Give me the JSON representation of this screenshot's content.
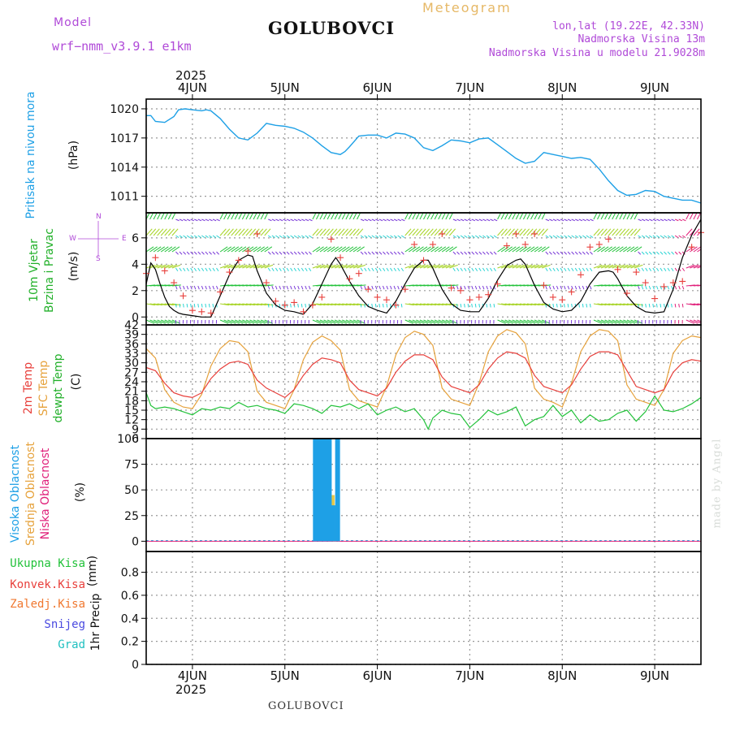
{
  "header": {
    "model_label": "Model",
    "model_name": "wrf−nmm_v3.9.1  e1km",
    "title": "GOLUBOVCI",
    "subtitle": "Meteogram",
    "lonlat": "lon,lat (19.22E, 42.33N)",
    "elevation": "Nadmorska Visina 13m",
    "model_elevation": "Nadmorska Visina u modelu 21.9028m",
    "footer_title": "GOLUBOVCI",
    "watermark": "made by Angel"
  },
  "colors": {
    "pressure": "#1ea0e6",
    "wind_speed": "#000000",
    "gust": "#e8403c",
    "temp2m": "#e8403c",
    "sfc_temp": "#e6a23c",
    "dewpoint": "#22c23a",
    "cloud_high": "#1ea0e6",
    "cloud_mid": "#e6c84a",
    "cloud_low": "#e0207a",
    "grid": "#888888"
  },
  "chart_data": [
    {
      "type": "line",
      "panel": "pressure",
      "ylabel": "Pritisak na nivou mora",
      "unit": "(hPa)",
      "yticks": [
        1011,
        1014,
        1017,
        1020
      ],
      "ylim": [
        1009.3,
        1021.0
      ],
      "x_days": [
        "4JUN",
        "5JUN",
        "6JUN",
        "7JUN",
        "8JUN",
        "9JUN"
      ],
      "year": "2025",
      "xlim": [
        3.5,
        9.5
      ],
      "series": [
        {
          "x": [
            3.5,
            3.55,
            3.6,
            3.7,
            3.8,
            3.85,
            3.92,
            4.0,
            4.1,
            4.15,
            4.2,
            4.3,
            4.4,
            4.5,
            4.6,
            4.7,
            4.8,
            4.9,
            5.0,
            5.1,
            5.2,
            5.3,
            5.4,
            5.5,
            5.6,
            5.65,
            5.7,
            5.8,
            5.9,
            6.0,
            6.1,
            6.2,
            6.3,
            6.4,
            6.5,
            6.6,
            6.7,
            6.8,
            6.9,
            7.0,
            7.1,
            7.2,
            7.3,
            7.4,
            7.5,
            7.6,
            7.7,
            7.8,
            7.9,
            8.0,
            8.1,
            8.2,
            8.3,
            8.4,
            8.5,
            8.6,
            8.7,
            8.8,
            8.9,
            9.0,
            9.1,
            9.2,
            9.3,
            9.4,
            9.5
          ],
          "values": [
            1019.3,
            1019.3,
            1018.7,
            1018.6,
            1019.2,
            1019.9,
            1020.0,
            1019.9,
            1019.8,
            1019.9,
            1019.8,
            1019.0,
            1017.9,
            1017.0,
            1016.8,
            1017.5,
            1018.5,
            1018.3,
            1018.2,
            1018.0,
            1017.6,
            1017.0,
            1016.2,
            1015.5,
            1015.3,
            1015.6,
            1016.1,
            1017.2,
            1017.3,
            1017.3,
            1017.0,
            1017.5,
            1017.4,
            1017.0,
            1016.0,
            1015.7,
            1016.2,
            1016.8,
            1016.7,
            1016.5,
            1016.9,
            1017.0,
            1016.3,
            1015.6,
            1014.9,
            1014.4,
            1014.6,
            1015.5,
            1015.3,
            1015.1,
            1014.9,
            1015.0,
            1014.8,
            1013.8,
            1012.6,
            1011.6,
            1011.1,
            1011.2,
            1011.6,
            1011.5,
            1011.0,
            1010.8,
            1010.6,
            1010.6,
            1010.3
          ]
        }
      ]
    },
    {
      "type": "line",
      "panel": "wind",
      "ylabel_line1": "10m  Vjetar",
      "ylabel_line2": "Brzina i Pravac",
      "unit": "(m/s)",
      "compass": [
        "N",
        "E",
        "S",
        "W"
      ],
      "yticks": [
        0,
        2,
        4,
        6
      ],
      "ylim": [
        -0.6,
        7.9
      ],
      "xlim": [
        3.5,
        9.5
      ],
      "series": [
        {
          "name_role": "speed",
          "x": [
            3.5,
            3.55,
            3.6,
            3.65,
            3.7,
            3.75,
            3.8,
            3.85,
            3.9,
            4.0,
            4.1,
            4.2,
            4.3,
            4.4,
            4.5,
            4.6,
            4.65,
            4.7,
            4.8,
            4.9,
            5.0,
            5.1,
            5.2,
            5.3,
            5.4,
            5.5,
            5.55,
            5.6,
            5.7,
            5.8,
            5.9,
            6.0,
            6.1,
            6.2,
            6.3,
            6.4,
            6.5,
            6.55,
            6.6,
            6.7,
            6.8,
            6.9,
            7.0,
            7.1,
            7.2,
            7.3,
            7.4,
            7.5,
            7.55,
            7.6,
            7.7,
            7.8,
            7.9,
            8.0,
            8.1,
            8.2,
            8.3,
            8.4,
            8.5,
            8.55,
            8.6,
            8.7,
            8.8,
            8.9,
            9.0,
            9.1,
            9.2,
            9.3,
            9.4,
            9.5
          ],
          "values": [
            2.5,
            4.1,
            3.6,
            2.5,
            1.5,
            0.8,
            0.5,
            0.3,
            0.2,
            0.1,
            0.0,
            0.0,
            1.6,
            3.2,
            4.3,
            4.7,
            4.6,
            3.5,
            1.8,
            0.9,
            0.5,
            0.4,
            0.2,
            1.0,
            2.5,
            4.0,
            4.5,
            4.0,
            2.7,
            1.6,
            0.8,
            0.5,
            0.3,
            1.2,
            2.5,
            3.7,
            4.3,
            4.3,
            3.7,
            2.1,
            1.0,
            0.5,
            0.4,
            0.4,
            1.4,
            2.8,
            3.9,
            4.3,
            4.4,
            4.0,
            2.4,
            1.1,
            0.6,
            0.4,
            0.5,
            1.2,
            2.5,
            3.4,
            3.5,
            3.4,
            2.9,
            1.6,
            0.8,
            0.4,
            0.3,
            0.4,
            2.1,
            4.5,
            6.2,
            7.4
          ]
        },
        {
          "name_role": "gust",
          "x": [
            3.5,
            3.6,
            3.7,
            3.8,
            3.9,
            4.0,
            4.1,
            4.2,
            4.3,
            4.4,
            4.5,
            4.6,
            4.7,
            4.8,
            4.9,
            5.0,
            5.1,
            5.2,
            5.3,
            5.4,
            5.5,
            5.6,
            5.7,
            5.8,
            5.9,
            6.0,
            6.1,
            6.2,
            6.3,
            6.4,
            6.5,
            6.6,
            6.7,
            6.8,
            6.9,
            7.0,
            7.1,
            7.2,
            7.3,
            7.4,
            7.5,
            7.6,
            7.7,
            7.8,
            7.9,
            8.0,
            8.1,
            8.2,
            8.3,
            8.4,
            8.5,
            8.6,
            8.7,
            8.8,
            8.9,
            9.0,
            9.1,
            9.2,
            9.3,
            9.4,
            9.5
          ],
          "values": [
            3.3,
            4.5,
            3.5,
            2.6,
            1.6,
            0.5,
            0.4,
            0.3,
            1.9,
            3.4,
            4.3,
            5.0,
            6.3,
            2.6,
            1.2,
            0.9,
            1.1,
            0.4,
            0.9,
            1.5,
            5.9,
            4.5,
            2.9,
            3.3,
            2.1,
            1.5,
            1.3,
            0.9,
            2.1,
            5.5,
            4.3,
            5.5,
            6.3,
            2.2,
            2.0,
            1.3,
            1.5,
            1.7,
            2.5,
            5.4,
            6.3,
            5.5,
            6.3,
            2.4,
            1.5,
            1.3,
            1.9,
            3.2,
            5.3,
            5.5,
            5.9,
            3.6,
            1.8,
            3.4,
            2.6,
            1.4,
            2.3,
            2.6,
            2.7,
            5.3,
            6.4
          ]
        }
      ]
    },
    {
      "type": "line",
      "panel": "temperature",
      "ylabel_2m": "2m  Temp",
      "ylabel_sfc": "SFC Temp",
      "ylabel_dew": "dewpt Temp",
      "unit": "(C)",
      "yticks": [
        6,
        9,
        12,
        15,
        18,
        21,
        24,
        27,
        30,
        33,
        36,
        39,
        42
      ],
      "ylim": [
        6,
        42
      ],
      "xlim": [
        3.5,
        9.5
      ],
      "series": [
        {
          "name_role": "temp2m",
          "x": [
            3.5,
            3.6,
            3.7,
            3.8,
            3.9,
            4.0,
            4.1,
            4.2,
            4.3,
            4.4,
            4.5,
            4.6,
            4.7,
            4.8,
            4.9,
            5.0,
            5.1,
            5.2,
            5.3,
            5.4,
            5.5,
            5.6,
            5.7,
            5.8,
            5.9,
            6.0,
            6.1,
            6.2,
            6.3,
            6.4,
            6.5,
            6.6,
            6.7,
            6.8,
            6.9,
            7.0,
            7.1,
            7.2,
            7.3,
            7.4,
            7.5,
            7.6,
            7.7,
            7.8,
            7.9,
            8.0,
            8.1,
            8.2,
            8.3,
            8.4,
            8.5,
            8.6,
            8.7,
            8.8,
            8.9,
            9.0,
            9.1,
            9.2,
            9.3,
            9.4,
            9.5
          ],
          "values": [
            28.5,
            27.5,
            23.5,
            20.5,
            19.5,
            19.0,
            20.5,
            25.0,
            28.0,
            30.0,
            30.5,
            29.5,
            24.5,
            22.0,
            20.5,
            19.0,
            21.5,
            26.0,
            29.5,
            31.5,
            31.0,
            30.0,
            24.5,
            21.5,
            20.5,
            19.5,
            22.0,
            27.0,
            30.5,
            32.5,
            32.5,
            31.0,
            25.5,
            22.5,
            21.5,
            20.5,
            23.0,
            28.0,
            31.5,
            33.5,
            33.0,
            31.5,
            26.0,
            22.5,
            21.5,
            20.5,
            23.0,
            28.0,
            32.0,
            33.5,
            33.5,
            32.5,
            27.5,
            22.5,
            21.5,
            20.5,
            21.5,
            27.0,
            30.0,
            31.0,
            30.5
          ]
        },
        {
          "name_role": "sfc",
          "x": [
            3.5,
            3.6,
            3.7,
            3.8,
            3.9,
            4.0,
            4.1,
            4.2,
            4.3,
            4.4,
            4.5,
            4.6,
            4.7,
            4.8,
            4.9,
            5.0,
            5.1,
            5.2,
            5.3,
            5.4,
            5.5,
            5.6,
            5.7,
            5.8,
            5.9,
            6.0,
            6.1,
            6.2,
            6.3,
            6.4,
            6.5,
            6.6,
            6.7,
            6.8,
            6.9,
            7.0,
            7.1,
            7.2,
            7.3,
            7.4,
            7.5,
            7.6,
            7.7,
            7.8,
            7.9,
            8.0,
            8.1,
            8.2,
            8.3,
            8.4,
            8.5,
            8.6,
            8.7,
            8.8,
            8.9,
            9.0,
            9.1,
            9.2,
            9.3,
            9.4,
            9.5
          ],
          "values": [
            34.5,
            31.5,
            21.5,
            17.5,
            16.0,
            15.5,
            20.0,
            29.0,
            34.5,
            37.0,
            36.5,
            33.5,
            21.0,
            17.5,
            16.5,
            15.5,
            21.5,
            31.0,
            36.5,
            38.5,
            37.0,
            34.0,
            21.5,
            18.0,
            17.0,
            16.0,
            22.5,
            32.5,
            38.0,
            40.0,
            39.0,
            35.5,
            22.0,
            18.5,
            17.5,
            16.5,
            23.5,
            33.5,
            38.5,
            40.5,
            39.5,
            36.0,
            22.0,
            18.5,
            17.5,
            16.0,
            23.5,
            33.5,
            38.5,
            40.5,
            40.0,
            37.0,
            23.0,
            18.5,
            17.5,
            16.5,
            21.5,
            33.0,
            37.0,
            38.5,
            38.0
          ]
        },
        {
          "name_role": "dewpoint",
          "x": [
            3.5,
            3.55,
            3.6,
            3.7,
            3.8,
            3.9,
            4.0,
            4.1,
            4.2,
            4.3,
            4.4,
            4.5,
            4.6,
            4.7,
            4.8,
            4.9,
            5.0,
            5.1,
            5.2,
            5.3,
            5.4,
            5.5,
            5.6,
            5.7,
            5.8,
            5.9,
            6.0,
            6.1,
            6.2,
            6.3,
            6.4,
            6.5,
            6.55,
            6.6,
            6.7,
            6.8,
            6.9,
            7.0,
            7.1,
            7.2,
            7.3,
            7.4,
            7.5,
            7.6,
            7.7,
            7.8,
            7.9,
            8.0,
            8.1,
            8.2,
            8.3,
            8.4,
            8.5,
            8.6,
            8.7,
            8.8,
            8.9,
            9.0,
            9.1,
            9.2,
            9.3,
            9.4,
            9.5
          ],
          "values": [
            20.5,
            16.5,
            15.5,
            16.0,
            15.5,
            14.5,
            13.5,
            15.5,
            15.0,
            16.0,
            15.5,
            17.5,
            16.0,
            16.5,
            15.5,
            15.0,
            14.0,
            17.0,
            16.5,
            15.5,
            14.0,
            16.5,
            16.0,
            17.0,
            15.5,
            17.0,
            13.5,
            15.0,
            16.0,
            14.5,
            15.5,
            12.0,
            9.0,
            12.5,
            15.0,
            14.0,
            13.5,
            9.5,
            12.0,
            15.0,
            13.5,
            14.5,
            16.0,
            10.0,
            12.0,
            13.0,
            16.5,
            13.0,
            15.0,
            11.0,
            13.5,
            11.5,
            12.0,
            14.0,
            15.0,
            11.5,
            14.5,
            19.5,
            15.0,
            14.5,
            15.5,
            17.0,
            19.0
          ]
        }
      ]
    },
    {
      "type": "bar",
      "panel": "clouds",
      "ylabel_high": "Visoka Oblacnost",
      "ylabel_mid": "Srednja Oblacnost",
      "ylabel_low": "Niska Oblacnost",
      "unit": "(%)",
      "yticks": [
        0,
        25,
        50,
        75,
        100
      ],
      "ylim": [
        -10,
        100
      ],
      "xlim": [
        3.5,
        9.5
      ],
      "bars_high": {
        "x": [
          5.33,
          5.38,
          5.43,
          5.48,
          5.52,
          5.57
        ],
        "values": [
          100,
          100,
          100,
          100,
          35,
          100
        ]
      },
      "bars_mid": {
        "x": [
          5.52,
          5.55
        ],
        "values": [
          45,
          12
        ]
      }
    },
    {
      "type": "bar",
      "panel": "precip",
      "legend": [
        "Ukupna  Kisa",
        "Konvek.Kisa",
        "Zaledj.Kisa",
        "Snijeg",
        "Grad"
      ],
      "ylabel": "1hr Precip",
      "unit": "(mm)",
      "yticks": [
        "0",
        "0.2",
        "0.4",
        "0.6",
        "0.8"
      ],
      "ylim": [
        0,
        0.98
      ],
      "xlim": [
        3.5,
        9.5
      ],
      "values": []
    }
  ]
}
